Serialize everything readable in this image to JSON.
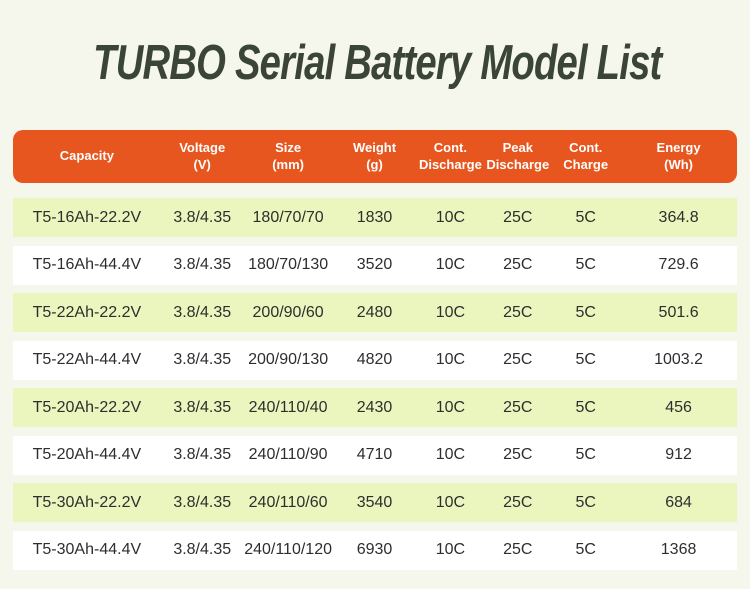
{
  "page": {
    "background_color": "#f5f6ec",
    "accent_color": "#e7561f",
    "alt_row_color": "#ebf5be",
    "title_color": "#3a4437"
  },
  "title": "TURBO Serial Battery Model List",
  "table": {
    "headers": [
      "Capacity",
      "Voltage\n(V)",
      "Size\n(mm)",
      "Weight\n(g)",
      "Cont.\nDischarge",
      "Peak\nDischarge",
      "Cont.\nCharge",
      "Energy\n(Wh)"
    ],
    "rows": [
      [
        "T5-16Ah-22.2V",
        "3.8/4.35",
        "180/70/70",
        "1830",
        "10C",
        "25C",
        "5C",
        "364.8"
      ],
      [
        "T5-16Ah-44.4V",
        "3.8/4.35",
        "180/70/130",
        "3520",
        "10C",
        "25C",
        "5C",
        "729.6"
      ],
      [
        "T5-22Ah-22.2V",
        "3.8/4.35",
        "200/90/60",
        "2480",
        "10C",
        "25C",
        "5C",
        "501.6"
      ],
      [
        "T5-22Ah-44.4V",
        "3.8/4.35",
        "200/90/130",
        "4820",
        "10C",
        "25C",
        "5C",
        "1003.2"
      ],
      [
        "T5-20Ah-22.2V",
        "3.8/4.35",
        "240/110/40",
        "2430",
        "10C",
        "25C",
        "5C",
        "456"
      ],
      [
        "T5-20Ah-44.4V",
        "3.8/4.35",
        "240/110/90",
        "4710",
        "10C",
        "25C",
        "5C",
        "912"
      ],
      [
        "T5-30Ah-22.2V",
        "3.8/4.35",
        "240/110/60",
        "3540",
        "10C",
        "25C",
        "5C",
        "684"
      ],
      [
        "T5-30Ah-44.4V",
        "3.8/4.35",
        "240/110/120",
        "6930",
        "10C",
        "25C",
        "5C",
        "1368"
      ]
    ]
  }
}
